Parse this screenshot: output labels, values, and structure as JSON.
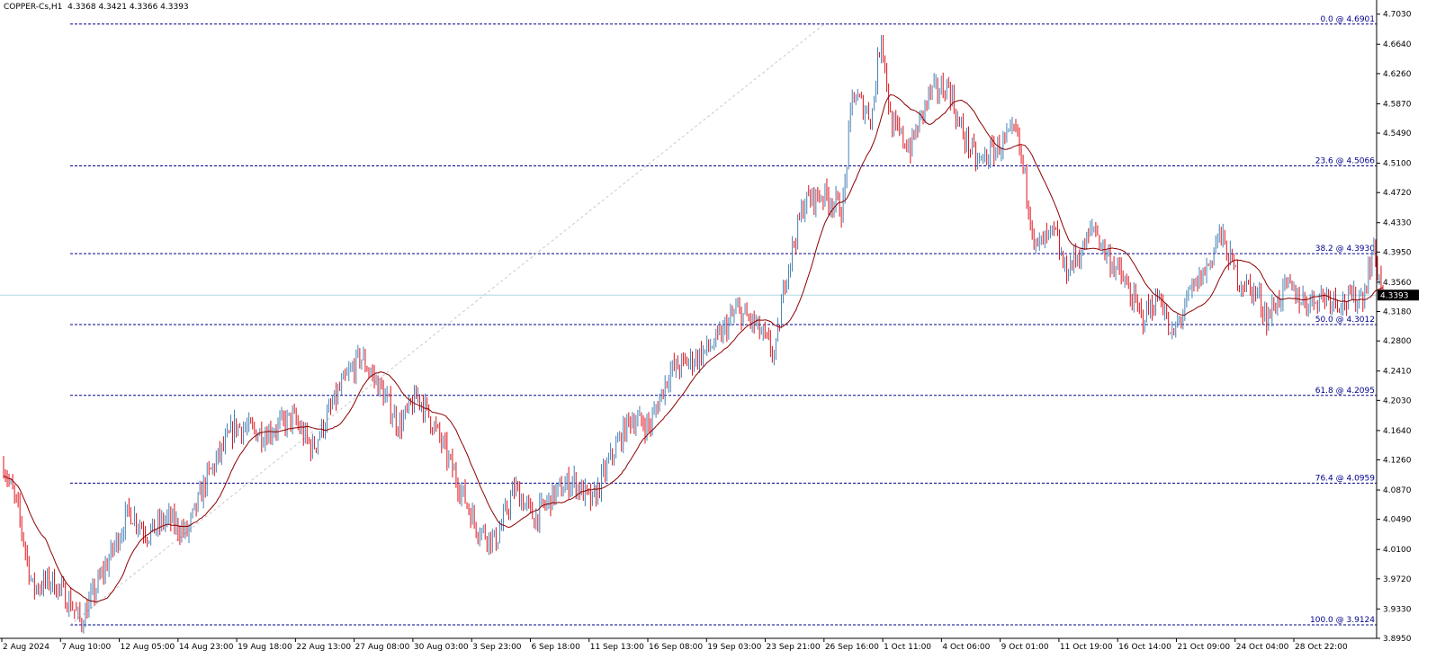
{
  "header": {
    "symbol": "COPPER-Cs,H1",
    "ohlc": "4.3368 4.3421 4.3366 4.3393"
  },
  "current_price_label": "4.3393",
  "colors": {
    "up": "#4682b4",
    "down": "#e0101a",
    "ma": "#8b0000",
    "fib": "#00008b",
    "current_line": "#add8e6",
    "current_box": "#000000",
    "trend": "#c8c8c8"
  },
  "chart_data": {
    "type": "candlestick",
    "timeframe": "H1",
    "ylim": [
      3.895,
      4.705
    ],
    "yticks": [
      "4.7030",
      "4.6640",
      "4.6260",
      "4.5870",
      "4.5490",
      "4.5100",
      "4.4720",
      "4.4330",
      "4.3950",
      "4.3560",
      "4.3180",
      "4.2800",
      "4.2410",
      "4.2030",
      "4.1640",
      "4.1260",
      "4.0870",
      "4.0490",
      "4.0100",
      "3.9720",
      "3.9330",
      "3.8950"
    ],
    "xticks": [
      "2 Aug 2024",
      "7 Aug 10:00",
      "12 Aug 05:00",
      "14 Aug 23:00",
      "19 Aug 18:00",
      "22 Aug 13:00",
      "27 Aug 08:00",
      "30 Aug 03:00",
      "3 Sep 23:00",
      "6 Sep 18:00",
      "11 Sep 13:00",
      "16 Sep 08:00",
      "19 Sep 03:00",
      "23 Sep 21:00",
      "26 Sep 16:00",
      "1 Oct 11:00",
      "4 Oct 06:00",
      "9 Oct 01:00",
      "11 Oct 19:00",
      "16 Oct 14:00",
      "21 Oct 09:00",
      "24 Oct 04:00",
      "28 Oct 22:00"
    ],
    "current_price": 4.3393,
    "path_anchors": [
      [
        0,
        4.12
      ],
      [
        1.5,
        4.06
      ],
      [
        3,
        3.96
      ],
      [
        5,
        3.97
      ],
      [
        7,
        3.94
      ],
      [
        8,
        3.915
      ],
      [
        11,
        4.0
      ],
      [
        13,
        4.06
      ],
      [
        15,
        4.03
      ],
      [
        17,
        4.05
      ],
      [
        19,
        4.03
      ],
      [
        21,
        4.1
      ],
      [
        24,
        4.17
      ],
      [
        27,
        4.16
      ],
      [
        30,
        4.18
      ],
      [
        32,
        4.14
      ],
      [
        35,
        4.22
      ],
      [
        37,
        4.26
      ],
      [
        39,
        4.22
      ],
      [
        41,
        4.17
      ],
      [
        43,
        4.21
      ],
      [
        45,
        4.16
      ],
      [
        47,
        4.1
      ],
      [
        49,
        4.04
      ],
      [
        51,
        4.02
      ],
      [
        53,
        4.09
      ],
      [
        55,
        4.05
      ],
      [
        57,
        4.08
      ],
      [
        59,
        4.1
      ],
      [
        61,
        4.07
      ],
      [
        63,
        4.13
      ],
      [
        65,
        4.18
      ],
      [
        67,
        4.17
      ],
      [
        69,
        4.24
      ],
      [
        72,
        4.26
      ],
      [
        74,
        4.28
      ],
      [
        76,
        4.32
      ],
      [
        78,
        4.3
      ],
      [
        80,
        4.26
      ],
      [
        81,
        4.36
      ],
      [
        83,
        4.46
      ],
      [
        85,
        4.47
      ],
      [
        87,
        4.45
      ],
      [
        88,
        4.6
      ],
      [
        90,
        4.57
      ],
      [
        91,
        4.68
      ],
      [
        92,
        4.56
      ],
      [
        94,
        4.53
      ],
      [
        96,
        4.6
      ],
      [
        98,
        4.61
      ],
      [
        99,
        4.56
      ],
      [
        101,
        4.51
      ],
      [
        103,
        4.53
      ],
      [
        105,
        4.55
      ],
      [
        106,
        4.48
      ],
      [
        107,
        4.4
      ],
      [
        109,
        4.42
      ],
      [
        110,
        4.37
      ],
      [
        112,
        4.4
      ],
      [
        113,
        4.43
      ],
      [
        114,
        4.4
      ],
      [
        116,
        4.36
      ],
      [
        118,
        4.31
      ],
      [
        120,
        4.34
      ],
      [
        121,
        4.28
      ],
      [
        123,
        4.34
      ],
      [
        125,
        4.38
      ],
      [
        126,
        4.42
      ],
      [
        128,
        4.36
      ],
      [
        130,
        4.34
      ],
      [
        131,
        4.31
      ],
      [
        133,
        4.35
      ],
      [
        135,
        4.33
      ],
      [
        137,
        4.34
      ],
      [
        139,
        4.33
      ],
      [
        141,
        4.34
      ],
      [
        142,
        4.4
      ],
      [
        143,
        4.3393
      ]
    ],
    "fibonacci": {
      "levels": [
        {
          "label": "0.0 @ 4.6901",
          "value": 4.6901
        },
        {
          "label": "23.6 @ 4.5066",
          "value": 4.5066
        },
        {
          "label": "38.2 @ 4.3930",
          "value": 4.393
        },
        {
          "label": "50.0 @ 4.3012",
          "value": 4.3012
        },
        {
          "label": "61.8 @ 4.2095",
          "value": 4.2095
        },
        {
          "label": "76.4 @ 4.0959",
          "value": 4.0959
        },
        {
          "label": "100.0 @ 3.9124",
          "value": 3.9124
        }
      ]
    }
  }
}
